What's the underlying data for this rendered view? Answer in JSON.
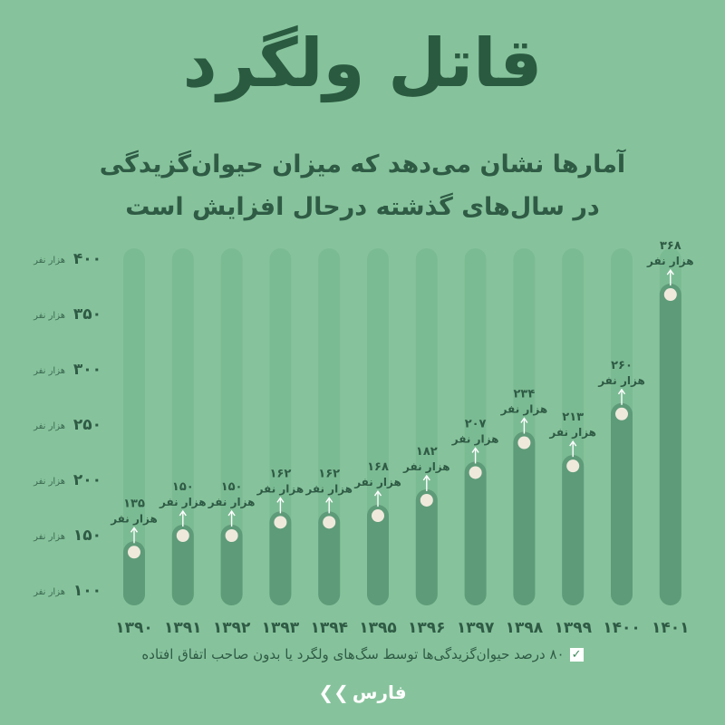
{
  "title": "قاتل ولگرد",
  "subtitle_line1": "آمارها نشان می‌دهد که میزان حیوان‌گزیدگی",
  "subtitle_line2": "در سال‌های گذشته درحال افزایش است",
  "note": "۸۰ درصد حیوان‌گزیدگی‌ها توسط سگ‌های ولگرد یا بدون صاحب اتفاق افتاده",
  "note_icon": "check-icon",
  "logo_text": "فارس",
  "logo_icon": "fars-logo-icon",
  "colors": {
    "background": "#86c39c",
    "track": "#7bbb93",
    "bar": "#5e9b78",
    "title": "#2a5a40",
    "dot": "#efe9dc"
  },
  "chart_data": {
    "type": "bar",
    "categories": [
      "۱۳۹۰",
      "۱۳۹۱",
      "۱۳۹۲",
      "۱۳۹۳",
      "۱۳۹۴",
      "۱۳۹۵",
      "۱۳۹۶",
      "۱۳۹۷",
      "۱۳۹۸",
      "۱۳۹۹",
      "۱۴۰۰",
      "۱۴۰۱"
    ],
    "values": [
      135,
      150,
      150,
      162,
      162,
      168,
      182,
      207,
      234,
      213,
      260,
      368
    ],
    "value_labels": [
      "۱۳۵",
      "۱۵۰",
      "۱۵۰",
      "۱۶۲",
      "۱۶۲",
      "۱۶۸",
      "۱۸۲",
      "۲۰۷",
      "۲۳۴",
      "۲۱۳",
      "۲۶۰",
      "۳۶۸"
    ],
    "value_unit": "هزار نفر",
    "y_ticks": [
      {
        "value": 400,
        "label": "۴۰۰"
      },
      {
        "value": 350,
        "label": "۳۵۰"
      },
      {
        "value": 300,
        "label": "۳۰۰"
      },
      {
        "value": 250,
        "label": "۲۵۰"
      },
      {
        "value": 200,
        "label": "۲۰۰"
      },
      {
        "value": 150,
        "label": "۱۵۰"
      },
      {
        "value": 100,
        "label": "۱۰۰"
      }
    ],
    "y_tick_unit": "هزار نفر",
    "ylim": [
      100,
      400
    ],
    "title": "قاتل ولگرد",
    "xlabel": "",
    "ylabel": "",
    "grid": false
  }
}
